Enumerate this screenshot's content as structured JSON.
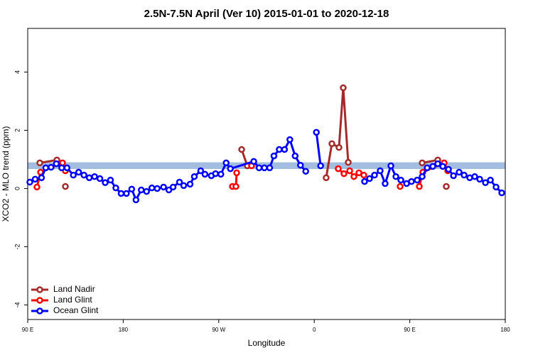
{
  "chart_data": {
    "type": "line",
    "title": "2.5N-7.5N April (Ver 10)   2015-01-01 to 2020-12-18",
    "x_label": "Longitude",
    "y_label": "XCO2 - MLO trend (ppm)",
    "xlim": [
      90,
      540
    ],
    "xticks": [
      {
        "value": 90,
        "label": "90 E"
      },
      {
        "value": 180,
        "label": "180"
      },
      {
        "value": 270,
        "label": "90 W"
      },
      {
        "value": 360,
        "label": "0"
      },
      {
        "value": 450,
        "label": "90 E"
      },
      {
        "value": 540,
        "label": "180"
      }
    ],
    "ylim": [
      -4.5,
      5.5
    ],
    "yticks": [
      -4,
      -2,
      0,
      2,
      4
    ],
    "grid": false,
    "legend": "bottom-left",
    "band": {
      "color": "#a3bde0",
      "range": [
        0.67,
        0.9
      ]
    },
    "series": [
      {
        "name": "Land Nadir",
        "color": "#a52a2a",
        "x": [
          101.4,
          117.5,
          null,
          125.5,
          null,
          291.6,
          296.9,
          null,
          371.2,
          376.6,
          383.3,
          387.3,
          392,
          null,
          461.7,
          476.4,
          null,
          484.4
        ],
        "values": [
          0.88,
          0.98,
          null,
          0.07,
          null,
          1.34,
          0.78,
          null,
          0.37,
          1.54,
          1.41,
          3.46,
          0.9,
          null,
          0.88,
          0.98,
          null,
          0.07
        ]
      },
      {
        "name": "Land Glint",
        "color": "#ff0000",
        "x": [
          98.7,
          102.1,
          122.8,
          125.5,
          null,
          282.9,
          286.2,
          286.9,
          null,
          300.9,
          null,
          382.6,
          388,
          393.4,
          397.4,
          402.1,
          406.7,
          null,
          440.9,
          null,
          459,
          462.3,
          482.4,
          485.8
        ],
        "values": [
          0.05,
          0.56,
          0.88,
          0.61,
          null,
          0.07,
          0.07,
          0.54,
          null,
          0.78,
          null,
          0.68,
          0.51,
          0.61,
          0.41,
          0.54,
          0.46,
          null,
          0.07,
          null,
          0.07,
          0.56,
          0.88,
          0.61
        ]
      },
      {
        "name": "Ocean Glint",
        "color": "#0000ff",
        "x": [
          92,
          97,
          103,
          107,
          112,
          117,
          122,
          127,
          133,
          138,
          143,
          148,
          153,
          158,
          163,
          168,
          173,
          178,
          183,
          188,
          192,
          197,
          202,
          207,
          212,
          218,
          223,
          227,
          233,
          237,
          243,
          247,
          253,
          257,
          263,
          267,
          272,
          277,
          281,
          303,
          308,
          313,
          318,
          322,
          327,
          332,
          337,
          342,
          347,
          352,
          null,
          362,
          366,
          null,
          407.4,
          412.1,
          416.8,
          422.1,
          426.8,
          432.2,
          436.9,
          441.6,
          447,
          451.6,
          457,
          461.7,
          466.4,
          471.7,
          476.4,
          481.1,
          486.5,
          491.2,
          496.5,
          501.2,
          506.5,
          511.2,
          515.9,
          521.3,
          526,
          531.3,
          536.7
        ],
        "values": [
          0.22,
          0.32,
          0.37,
          0.71,
          0.73,
          0.85,
          0.71,
          0.71,
          0.46,
          0.56,
          0.46,
          0.37,
          0.41,
          0.34,
          0.2,
          0.29,
          0.02,
          -0.17,
          -0.17,
          -0.02,
          -0.39,
          -0.05,
          -0.1,
          0.02,
          0,
          0.05,
          -0.05,
          0.05,
          0.22,
          0.1,
          0.15,
          0.41,
          0.61,
          0.49,
          0.44,
          0.51,
          0.49,
          0.88,
          0.68,
          0.93,
          0.71,
          0.71,
          0.71,
          1.12,
          1.34,
          1.34,
          1.68,
          1.12,
          0.8,
          0.59,
          null,
          1.93,
          0.78,
          null,
          0.24,
          0.34,
          0.46,
          0.61,
          0.17,
          0.78,
          0.41,
          0.29,
          0.17,
          0.24,
          0.29,
          0.41,
          0.71,
          0.76,
          0.85,
          0.76,
          0.66,
          0.44,
          0.56,
          0.46,
          0.37,
          0.41,
          0.32,
          0.2,
          0.29,
          0.05,
          -0.15
        ]
      }
    ]
  }
}
